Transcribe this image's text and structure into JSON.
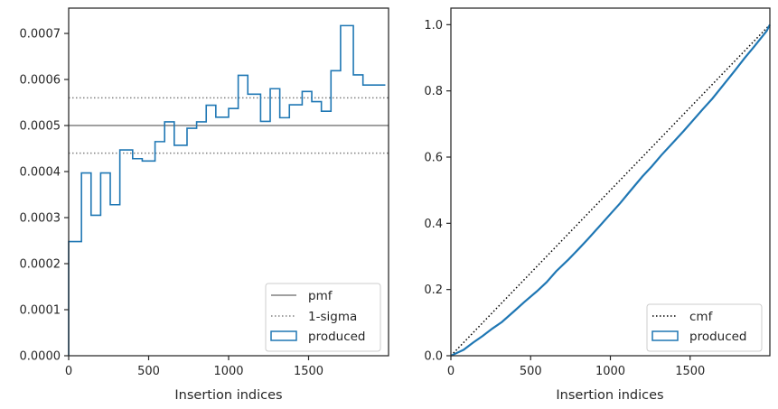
{
  "chart_data": [
    {
      "type": "histogram-step",
      "xlabel": "Insertion indices",
      "ylabel": "",
      "xlim": [
        0,
        2000
      ],
      "ylim": [
        0,
        0.000755
      ],
      "xticks": [
        "0",
        "500",
        "1000",
        "1500"
      ],
      "xtick_values": [
        0,
        500,
        1000,
        1500
      ],
      "yticks": [
        "0.0000",
        "0.0001",
        "0.0002",
        "0.0003",
        "0.0004",
        "0.0005",
        "0.0006",
        "0.0007"
      ],
      "ytick_values": [
        0,
        0.0001,
        0.0002,
        0.0003,
        0.0004,
        0.0005,
        0.0006,
        0.0007
      ],
      "reference_lines": [
        {
          "name": "pmf",
          "value": 0.0005,
          "style": "solid",
          "color": "#808080"
        },
        {
          "name": "1-sigma",
          "value": 0.00056,
          "style": "dotted",
          "color": "#808080"
        },
        {
          "name": "1-sigma",
          "value": 0.00044,
          "style": "dotted",
          "color": "#808080"
        }
      ],
      "series": [
        {
          "name": "produced",
          "color": "#1f77b4",
          "bin_edges": [
            0,
            80,
            140,
            200,
            260,
            320,
            400,
            460,
            540,
            600,
            660,
            740,
            800,
            860,
            920,
            1000,
            1060,
            1120,
            1200,
            1260,
            1320,
            1380,
            1460,
            1520,
            1580,
            1640,
            1700,
            1780,
            1840,
            1900,
            1980
          ],
          "values": [
            0.000248,
            0.000397,
            0.000305,
            0.000397,
            0.000328,
            0.000447,
            0.000428,
            0.000423,
            0.000465,
            0.000508,
            0.000457,
            0.000494,
            0.000508,
            0.000544,
            0.000518,
            0.000537,
            0.000609,
            0.000568,
            0.000509,
            0.00058,
            0.000517,
            0.000545,
            0.000574,
            0.000552,
            0.000531,
            0.000619,
            0.000717,
            0.00061,
            0.000588,
            0.000588
          ]
        }
      ],
      "legend": {
        "placement": "lower-right",
        "entries": [
          "pmf",
          "1-sigma",
          "produced"
        ]
      }
    },
    {
      "type": "line",
      "xlabel": "Insertion indices",
      "ylabel": "",
      "xlim": [
        0,
        2000
      ],
      "ylim": [
        0,
        1.05
      ],
      "xticks": [
        "0",
        "500",
        "1000",
        "1500"
      ],
      "xtick_values": [
        0,
        500,
        1000,
        1500
      ],
      "yticks": [
        "0.0",
        "0.2",
        "0.4",
        "0.6",
        "0.8",
        "1.0"
      ],
      "ytick_values": [
        0,
        0.2,
        0.4,
        0.6,
        0.8,
        1.0
      ],
      "series": [
        {
          "name": "cmf",
          "style": "dotted",
          "color": "#000000",
          "x": [
            0,
            2000
          ],
          "y": [
            0,
            1.0
          ]
        },
        {
          "name": "produced",
          "style": "step",
          "color": "#1f77b4",
          "x": [
            0,
            80,
            140,
            200,
            260,
            320,
            400,
            460,
            540,
            600,
            660,
            740,
            800,
            860,
            920,
            1000,
            1060,
            1120,
            1200,
            1260,
            1320,
            1380,
            1460,
            1520,
            1580,
            1640,
            1700,
            1780,
            1840,
            1900,
            1980,
            2000
          ],
          "y": [
            0,
            0.018,
            0.04,
            0.06,
            0.082,
            0.102,
            0.136,
            0.162,
            0.195,
            0.222,
            0.255,
            0.292,
            0.322,
            0.353,
            0.385,
            0.428,
            0.46,
            0.495,
            0.541,
            0.572,
            0.606,
            0.637,
            0.679,
            0.712,
            0.745,
            0.777,
            0.813,
            0.861,
            0.898,
            0.933,
            0.981,
            1.0
          ]
        }
      ],
      "legend": {
        "placement": "lower-right",
        "entries": [
          "cmf",
          "produced"
        ]
      }
    }
  ]
}
